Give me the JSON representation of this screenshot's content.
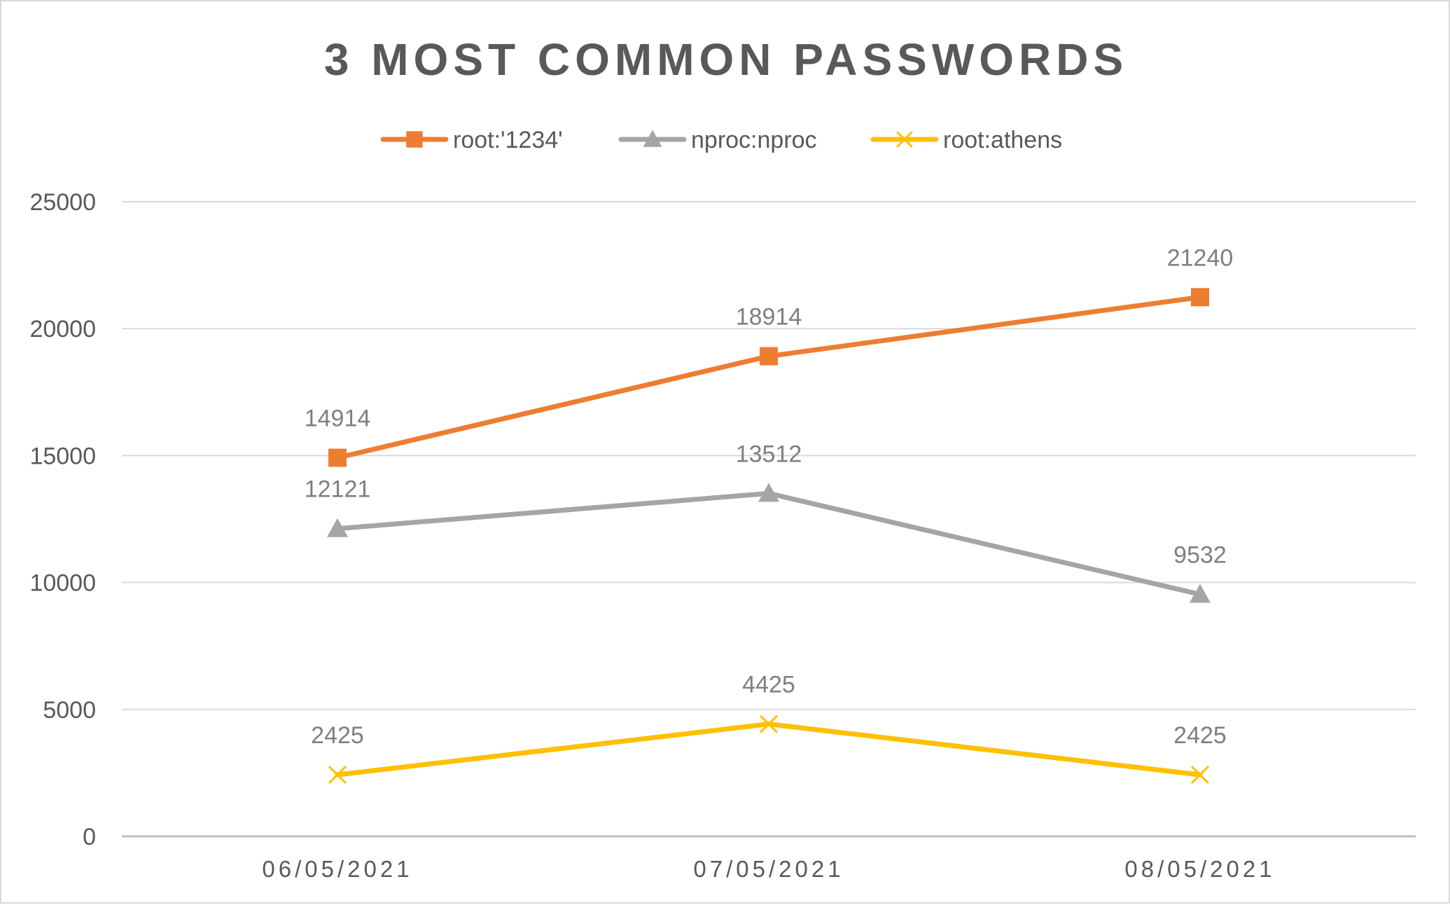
{
  "chart_data": {
    "type": "line",
    "title": "3 MOST COMMON PASSWORDS",
    "categories": [
      "06/05/2021",
      "07/05/2021",
      "08/05/2021"
    ],
    "yticks": [
      0,
      5000,
      10000,
      15000,
      20000,
      25000
    ],
    "ylim": [
      0,
      25000
    ],
    "grid": true,
    "legend": "top",
    "series": [
      {
        "name": "root:'1234'",
        "values": [
          14914,
          18914,
          21240
        ],
        "color": "#ED7D31",
        "marker": "square"
      },
      {
        "name": "nproc:nproc",
        "values": [
          12121,
          13512,
          9532
        ],
        "color": "#A5A5A5",
        "marker": "triangle"
      },
      {
        "name": "root:athens",
        "values": [
          2425,
          4425,
          2425
        ],
        "color": "#FFC000",
        "marker": "x"
      }
    ]
  }
}
